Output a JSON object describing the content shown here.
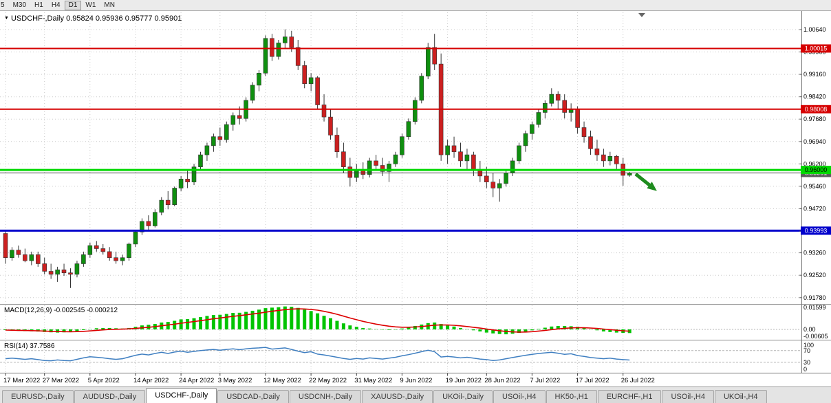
{
  "toolbar": {
    "timeframes": [
      "5",
      "M30",
      "H1",
      "H4",
      "D1",
      "W1",
      "MN"
    ],
    "active": "D1"
  },
  "header": {
    "symbol": "USDCHF-,Daily",
    "open": "0.95824",
    "high": "0.95936",
    "low": "0.95777",
    "close": "0.95901"
  },
  "tabs": {
    "items": [
      "EURUSD-,Daily",
      "AUDUSD-,Daily",
      "USDCHF-,Daily",
      "USDCAD-,Daily",
      "USDCNH-,Daily",
      "XAUUSD-,Daily",
      "UKOil-,Daily",
      "USOil-,H4",
      "HK50-,H1",
      "EURCHF-,H1",
      "USOil-,H4",
      "UKOil-,H4"
    ],
    "active_index": 2
  },
  "chart_data": {
    "type": "candlestick",
    "symbol": "USDCHF",
    "timeframe": "Daily",
    "price_axis": {
      "labels": [
        "1.00640",
        "0.99900",
        "0.99160",
        "0.98420",
        "0.97680",
        "0.96940",
        "0.96200",
        "0.95460",
        "0.94720",
        "0.93980",
        "0.93260",
        "0.92520",
        "0.91780"
      ]
    },
    "x_axis": {
      "tick_labels": [
        "17 Mar 2022",
        "27 Mar 2022",
        "5 Apr 2022",
        "14 Apr 2022",
        "24 Apr 2022",
        "3 May 2022",
        "12 May 2022",
        "22 May 2022",
        "31 May 2022",
        "9 Jun 2022",
        "19 Jun 2022",
        "28 Jun 2022",
        "7 Jul 2022",
        "17 Jul 2022",
        "26 Jul 2022"
      ],
      "tick_indices": [
        0,
        6,
        13,
        20,
        27,
        33,
        40,
        47,
        54,
        61,
        68,
        74,
        81,
        88,
        95
      ]
    },
    "candles": {
      "open": [
        0.939,
        0.931,
        0.9335,
        0.932,
        0.93,
        0.932,
        0.929,
        0.9265,
        0.9255,
        0.927,
        0.926,
        0.9255,
        0.929,
        0.932,
        0.935,
        0.934,
        0.933,
        0.931,
        0.93,
        0.931,
        0.9355,
        0.9395,
        0.943,
        0.9415,
        0.946,
        0.95,
        0.9485,
        0.954,
        0.957,
        0.956,
        0.961,
        0.965,
        0.968,
        0.971,
        0.97,
        0.975,
        0.978,
        0.977,
        0.983,
        0.988,
        0.992,
        1.0035,
        0.9975,
        1.002,
        1.004,
        1.0005,
        0.9945,
        0.9885,
        0.9905,
        0.9815,
        0.9775,
        0.9715,
        0.966,
        0.961,
        0.9575,
        0.96,
        0.9585,
        0.963,
        0.9615,
        0.9595,
        0.962,
        0.965,
        0.971,
        0.976,
        0.983,
        0.991,
        1.0005,
        0.995,
        0.965,
        0.968,
        0.966,
        0.963,
        0.965,
        0.96,
        0.958,
        0.956,
        0.954,
        0.9555,
        0.959,
        0.963,
        0.968,
        0.972,
        0.975,
        0.979,
        0.982,
        0.985,
        0.983,
        0.979,
        0.98,
        0.974,
        0.971,
        0.967,
        0.965,
        0.963,
        0.9645,
        0.962,
        0.95824
      ],
      "high": [
        0.94,
        0.9345,
        0.935,
        0.934,
        0.933,
        0.933,
        0.931,
        0.929,
        0.928,
        0.929,
        0.9275,
        0.93,
        0.933,
        0.936,
        0.9365,
        0.9355,
        0.9345,
        0.933,
        0.932,
        0.936,
        0.94,
        0.944,
        0.945,
        0.947,
        0.951,
        0.953,
        0.9545,
        0.958,
        0.96,
        0.962,
        0.966,
        0.969,
        0.972,
        0.974,
        0.976,
        0.979,
        0.981,
        0.984,
        0.989,
        0.993,
        1.0045,
        1.005,
        1.003,
        1.0065,
        1.006,
        1.003,
        0.996,
        0.992,
        0.991,
        0.985,
        0.98,
        0.974,
        0.969,
        0.964,
        0.962,
        0.9625,
        0.964,
        0.965,
        0.964,
        0.963,
        0.966,
        0.972,
        0.977,
        0.984,
        0.992,
        1.002,
        1.005,
        0.9985,
        0.97,
        0.971,
        0.969,
        0.967,
        0.966,
        0.963,
        0.961,
        0.959,
        0.957,
        0.96,
        0.964,
        0.969,
        0.973,
        0.976,
        0.98,
        0.983,
        0.987,
        0.986,
        0.985,
        0.982,
        0.981,
        0.976,
        0.973,
        0.97,
        0.967,
        0.966,
        0.965,
        0.964,
        0.95936
      ],
      "low": [
        0.929,
        0.93,
        0.931,
        0.9295,
        0.9285,
        0.928,
        0.9255,
        0.924,
        0.923,
        0.925,
        0.921,
        0.9245,
        0.928,
        0.931,
        0.933,
        0.932,
        0.93,
        0.929,
        0.9285,
        0.93,
        0.9345,
        0.9385,
        0.94,
        0.941,
        0.945,
        0.947,
        0.948,
        0.953,
        0.954,
        0.955,
        0.96,
        0.963,
        0.966,
        0.968,
        0.969,
        0.973,
        0.975,
        0.976,
        0.982,
        0.986,
        0.991,
        0.996,
        0.9965,
        1.0,
        0.999,
        0.993,
        0.987,
        0.986,
        0.98,
        0.976,
        0.97,
        0.964,
        0.959,
        0.9545,
        0.956,
        0.957,
        0.9575,
        0.96,
        0.958,
        0.956,
        0.961,
        0.964,
        0.97,
        0.975,
        0.982,
        0.99,
        0.993,
        0.963,
        0.962,
        0.964,
        0.961,
        0.96,
        0.958,
        0.956,
        0.954,
        0.951,
        0.9495,
        0.9545,
        0.958,
        0.962,
        0.966,
        0.97,
        0.974,
        0.977,
        0.981,
        0.98,
        0.977,
        0.976,
        0.972,
        0.969,
        0.965,
        0.963,
        0.961,
        0.9615,
        0.96,
        0.9548,
        0.95777
      ],
      "close": [
        0.931,
        0.9335,
        0.932,
        0.93,
        0.932,
        0.929,
        0.9265,
        0.9255,
        0.927,
        0.926,
        0.9255,
        0.929,
        0.932,
        0.935,
        0.934,
        0.933,
        0.931,
        0.93,
        0.931,
        0.9355,
        0.9395,
        0.943,
        0.9415,
        0.946,
        0.95,
        0.9485,
        0.954,
        0.957,
        0.956,
        0.961,
        0.965,
        0.968,
        0.971,
        0.97,
        0.975,
        0.978,
        0.977,
        0.983,
        0.988,
        0.992,
        1.0035,
        0.9975,
        1.002,
        1.004,
        1.0005,
        0.9945,
        0.9885,
        0.9905,
        0.9815,
        0.9775,
        0.9715,
        0.966,
        0.961,
        0.9575,
        0.96,
        0.9585,
        0.963,
        0.9615,
        0.9595,
        0.962,
        0.965,
        0.971,
        0.976,
        0.983,
        0.991,
        1.0005,
        0.995,
        0.965,
        0.968,
        0.966,
        0.963,
        0.965,
        0.96,
        0.958,
        0.956,
        0.954,
        0.9555,
        0.959,
        0.963,
        0.968,
        0.972,
        0.975,
        0.979,
        0.982,
        0.985,
        0.983,
        0.979,
        0.98,
        0.974,
        0.971,
        0.967,
        0.965,
        0.963,
        0.9645,
        0.962,
        0.9582,
        0.95901
      ]
    },
    "colors": {
      "bull": "#0f8f0f",
      "bear": "#cc2020",
      "outline": "#333333"
    },
    "levels": [
      {
        "label": "1.00015",
        "price": 1.00015,
        "color": "#d60000",
        "width": 2,
        "text": "#ffffff"
      },
      {
        "label": "0.98008",
        "price": 0.98008,
        "color": "#d60000",
        "width": 2,
        "text": "#ffffff"
      },
      {
        "label": "0.96000",
        "price": 0.96,
        "color": "#00d800",
        "width": 3,
        "text": "#000000"
      },
      {
        "label": "0.93993",
        "price": 0.93993,
        "color": "#0000cc",
        "width": 3,
        "text": "#ffffff"
      }
    ],
    "current_price": {
      "label": "0.95901",
      "price": 0.95901,
      "line_color": "#3a3a3a",
      "box_color": "#5a5a5a"
    },
    "macd": {
      "label": "MACD(12,26,9)",
      "values_label": "-0.002545 -0.000212",
      "axis_labels": [
        "0.01599",
        "0.00",
        "-0.00605"
      ],
      "histogram": [
        -0.0005,
        -0.0008,
        -0.001,
        -0.0012,
        -0.0013,
        -0.0015,
        -0.0018,
        -0.002,
        -0.0022,
        -0.002,
        -0.0018,
        -0.0012,
        -0.0005,
        0.0002,
        0.0008,
        0.001,
        0.001,
        0.0008,
        0.0006,
        0.001,
        0.0018,
        0.0028,
        0.0032,
        0.0038,
        0.0048,
        0.0052,
        0.006,
        0.007,
        0.0072,
        0.0078,
        0.0086,
        0.0094,
        0.01,
        0.0102,
        0.0108,
        0.0115,
        0.0116,
        0.0122,
        0.013,
        0.0138,
        0.0148,
        0.0152,
        0.0155,
        0.016,
        0.0158,
        0.015,
        0.0138,
        0.0128,
        0.0112,
        0.0095,
        0.0078,
        0.006,
        0.0042,
        0.0028,
        0.0018,
        0.001,
        0.0006,
        0.0002,
        -0.0002,
        -0.0004,
        -0.0002,
        0.0006,
        0.0014,
        0.0024,
        0.0034,
        0.0044,
        0.0048,
        0.0038,
        0.0028,
        0.002,
        0.001,
        0.0002,
        -0.0006,
        -0.0014,
        -0.0022,
        -0.0028,
        -0.0032,
        -0.0034,
        -0.003,
        -0.0024,
        -0.0016,
        -0.0006,
        0.0004,
        0.0012,
        0.002,
        0.0024,
        0.0024,
        0.0022,
        0.0018,
        0.001,
        0.0002,
        -0.0006,
        -0.0014,
        -0.0018,
        -0.0022,
        -0.0024,
        -0.00255
      ],
      "histogram_color": "#00c400",
      "signal_color": "#dd0000"
    },
    "rsi": {
      "label": "RSI(14)",
      "value_label": "37.7586",
      "levels": [
        100,
        70,
        30,
        0
      ],
      "line_color": "#3f7fc1",
      "values": [
        42,
        44,
        42,
        40,
        42,
        39,
        36,
        35,
        38,
        36,
        35,
        40,
        45,
        49,
        47,
        45,
        42,
        40,
        42,
        48,
        54,
        58,
        55,
        60,
        64,
        60,
        65,
        68,
        64,
        67,
        70,
        72,
        74,
        71,
        74,
        76,
        73,
        76,
        78,
        79,
        81,
        75,
        77,
        79,
        74,
        68,
        63,
        66,
        58,
        55,
        51,
        47,
        43,
        40,
        43,
        41,
        45,
        43,
        41,
        44,
        47,
        52,
        56,
        61,
        66,
        71,
        66,
        48,
        50,
        48,
        45,
        47,
        44,
        41,
        39,
        36,
        38,
        42,
        46,
        50,
        54,
        57,
        60,
        62,
        64,
        61,
        57,
        59,
        53,
        50,
        46,
        44,
        42,
        44,
        41,
        39,
        37.76
      ]
    },
    "annotations": {
      "arrow": {
        "shape": "down-right-arrow",
        "color": "#1e8c1e"
      }
    }
  }
}
